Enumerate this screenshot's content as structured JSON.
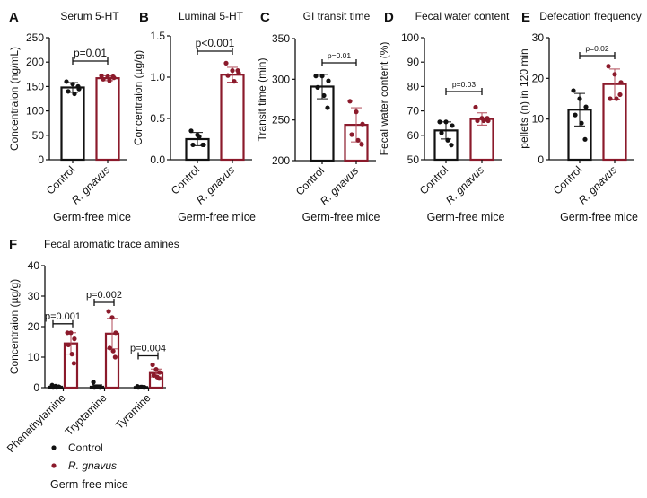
{
  "colors": {
    "control": "#111111",
    "gnavus": "#8b1a2b",
    "gnavus_error": "#b04a58"
  },
  "group_label": "Germ-free mice",
  "legend": [
    {
      "label": "Control",
      "color": "#111111",
      "italic": false
    },
    {
      "label": "R. gnavus",
      "color": "#8b1a2b",
      "italic": true
    }
  ],
  "chart_data": [
    {
      "panel": "A",
      "type": "bar",
      "title": "Serum 5-HT",
      "ylabel": "Concentraion (ng/mL)",
      "ylim": [
        0,
        250
      ],
      "yticks": [
        0,
        50,
        100,
        150,
        200,
        250
      ],
      "categories": [
        "Control",
        "R. gnavus"
      ],
      "means": [
        148,
        167
      ],
      "sd": [
        10,
        5
      ],
      "points": [
        [
          160,
          155,
          145,
          140,
          135,
          150
        ],
        [
          172,
          170,
          168,
          165,
          162,
          170
        ]
      ],
      "pvalue": "p=0.01",
      "xlabel": "Germ-free mice"
    },
    {
      "panel": "B",
      "type": "bar",
      "title": "Luminal 5-HT",
      "ylabel": "Concentraion (µg/g)",
      "ylim": [
        0,
        1.5
      ],
      "yticks": [
        0.0,
        0.5,
        1.0,
        1.5
      ],
      "categories": [
        "Control",
        "R. gnavus"
      ],
      "means": [
        0.25,
        1.03
      ],
      "sd": [
        0.08,
        0.09
      ],
      "points": [
        [
          0.35,
          0.3,
          0.18,
          0.18,
          0.28,
          0.18
        ],
        [
          1.17,
          1.08,
          1.05,
          1.02,
          0.95,
          1.08
        ]
      ],
      "pvalue": "p<0.001",
      "xlabel": "Germ-free mice"
    },
    {
      "panel": "C",
      "type": "bar",
      "title": "GI transit time",
      "ylabel": "Transit time (min)",
      "ylim": [
        200,
        350
      ],
      "yticks": [
        200,
        250,
        300,
        350
      ],
      "categories": [
        "Control",
        "R. gnavus"
      ],
      "means": [
        291,
        244
      ],
      "sd": [
        15,
        21
      ],
      "points": [
        [
          304,
          304,
          298,
          290,
          280,
          265
        ],
        [
          273,
          260,
          245,
          232,
          225,
          220
        ]
      ],
      "pvalue": "p=0.01",
      "xlabel": "Germ-free mice"
    },
    {
      "panel": "D",
      "type": "bar",
      "title": "Fecal water content",
      "ylabel": "Fecal water content (%)",
      "ylim": [
        50,
        100
      ],
      "yticks": [
        50,
        60,
        70,
        80,
        90,
        100
      ],
      "categories": [
        "Control",
        "R. gnavus"
      ],
      "means": [
        62,
        66.7
      ],
      "sd": [
        3.5,
        2.5
      ],
      "points": [
        [
          65.5,
          65.5,
          64,
          61,
          58,
          56
        ],
        [
          71.5,
          67,
          66,
          66,
          66,
          67
        ]
      ],
      "pvalue": "p=0.03",
      "xlabel": "Germ-free mice"
    },
    {
      "panel": "E",
      "type": "bar",
      "title": "Defecation frequency",
      "ylabel": "pellets (n) in 120 min",
      "ylim": [
        0,
        30
      ],
      "yticks": [
        0,
        10,
        20,
        30
      ],
      "categories": [
        "Control",
        "R. gnavus"
      ],
      "means": [
        12.3,
        18.6
      ],
      "sd": [
        4,
        3.7
      ],
      "points": [
        [
          17,
          15,
          13,
          11,
          9,
          5
        ],
        [
          23,
          21,
          19,
          15,
          15,
          16
        ]
      ],
      "pvalue": "p=0.02",
      "xlabel": "Germ-free mice"
    },
    {
      "panel": "F",
      "type": "bar",
      "title": "Fecal aromatic trace amines",
      "ylabel": "Concentraion (µg/g)",
      "ylim": [
        0,
        40
      ],
      "yticks": [
        0,
        10,
        20,
        30,
        40
      ],
      "categories": [
        "Phenethylamine",
        "Tryptamine",
        "Tyramine"
      ],
      "series": [
        {
          "name": "Control",
          "means": [
            0.3,
            0.3,
            0.2
          ],
          "sd": [
            0.3,
            0.6,
            0.2
          ],
          "points": [
            [
              0.8,
              0.5,
              0.2,
              0.1,
              0.1,
              0.3
            ],
            [
              1.8,
              0.3,
              0.1,
              0.1,
              0.2,
              0.1
            ],
            [
              0.4,
              0.2,
              0.1,
              0.1,
              0.2,
              0.1
            ]
          ]
        },
        {
          "name": "R. gnavus",
          "means": [
            14.5,
            17.7,
            4.8
          ],
          "sd": [
            3.5,
            5,
            1.3
          ],
          "points": [
            [
              18,
              18,
              16,
              14,
              11,
              8
            ],
            [
              25,
              23,
              18,
              13,
              12,
              10
            ],
            [
              7.5,
              6,
              5,
              4,
              3.5,
              3
            ]
          ]
        }
      ],
      "pvalues": [
        "p=0.001",
        "p=0.002",
        "p=0.004"
      ]
    }
  ]
}
